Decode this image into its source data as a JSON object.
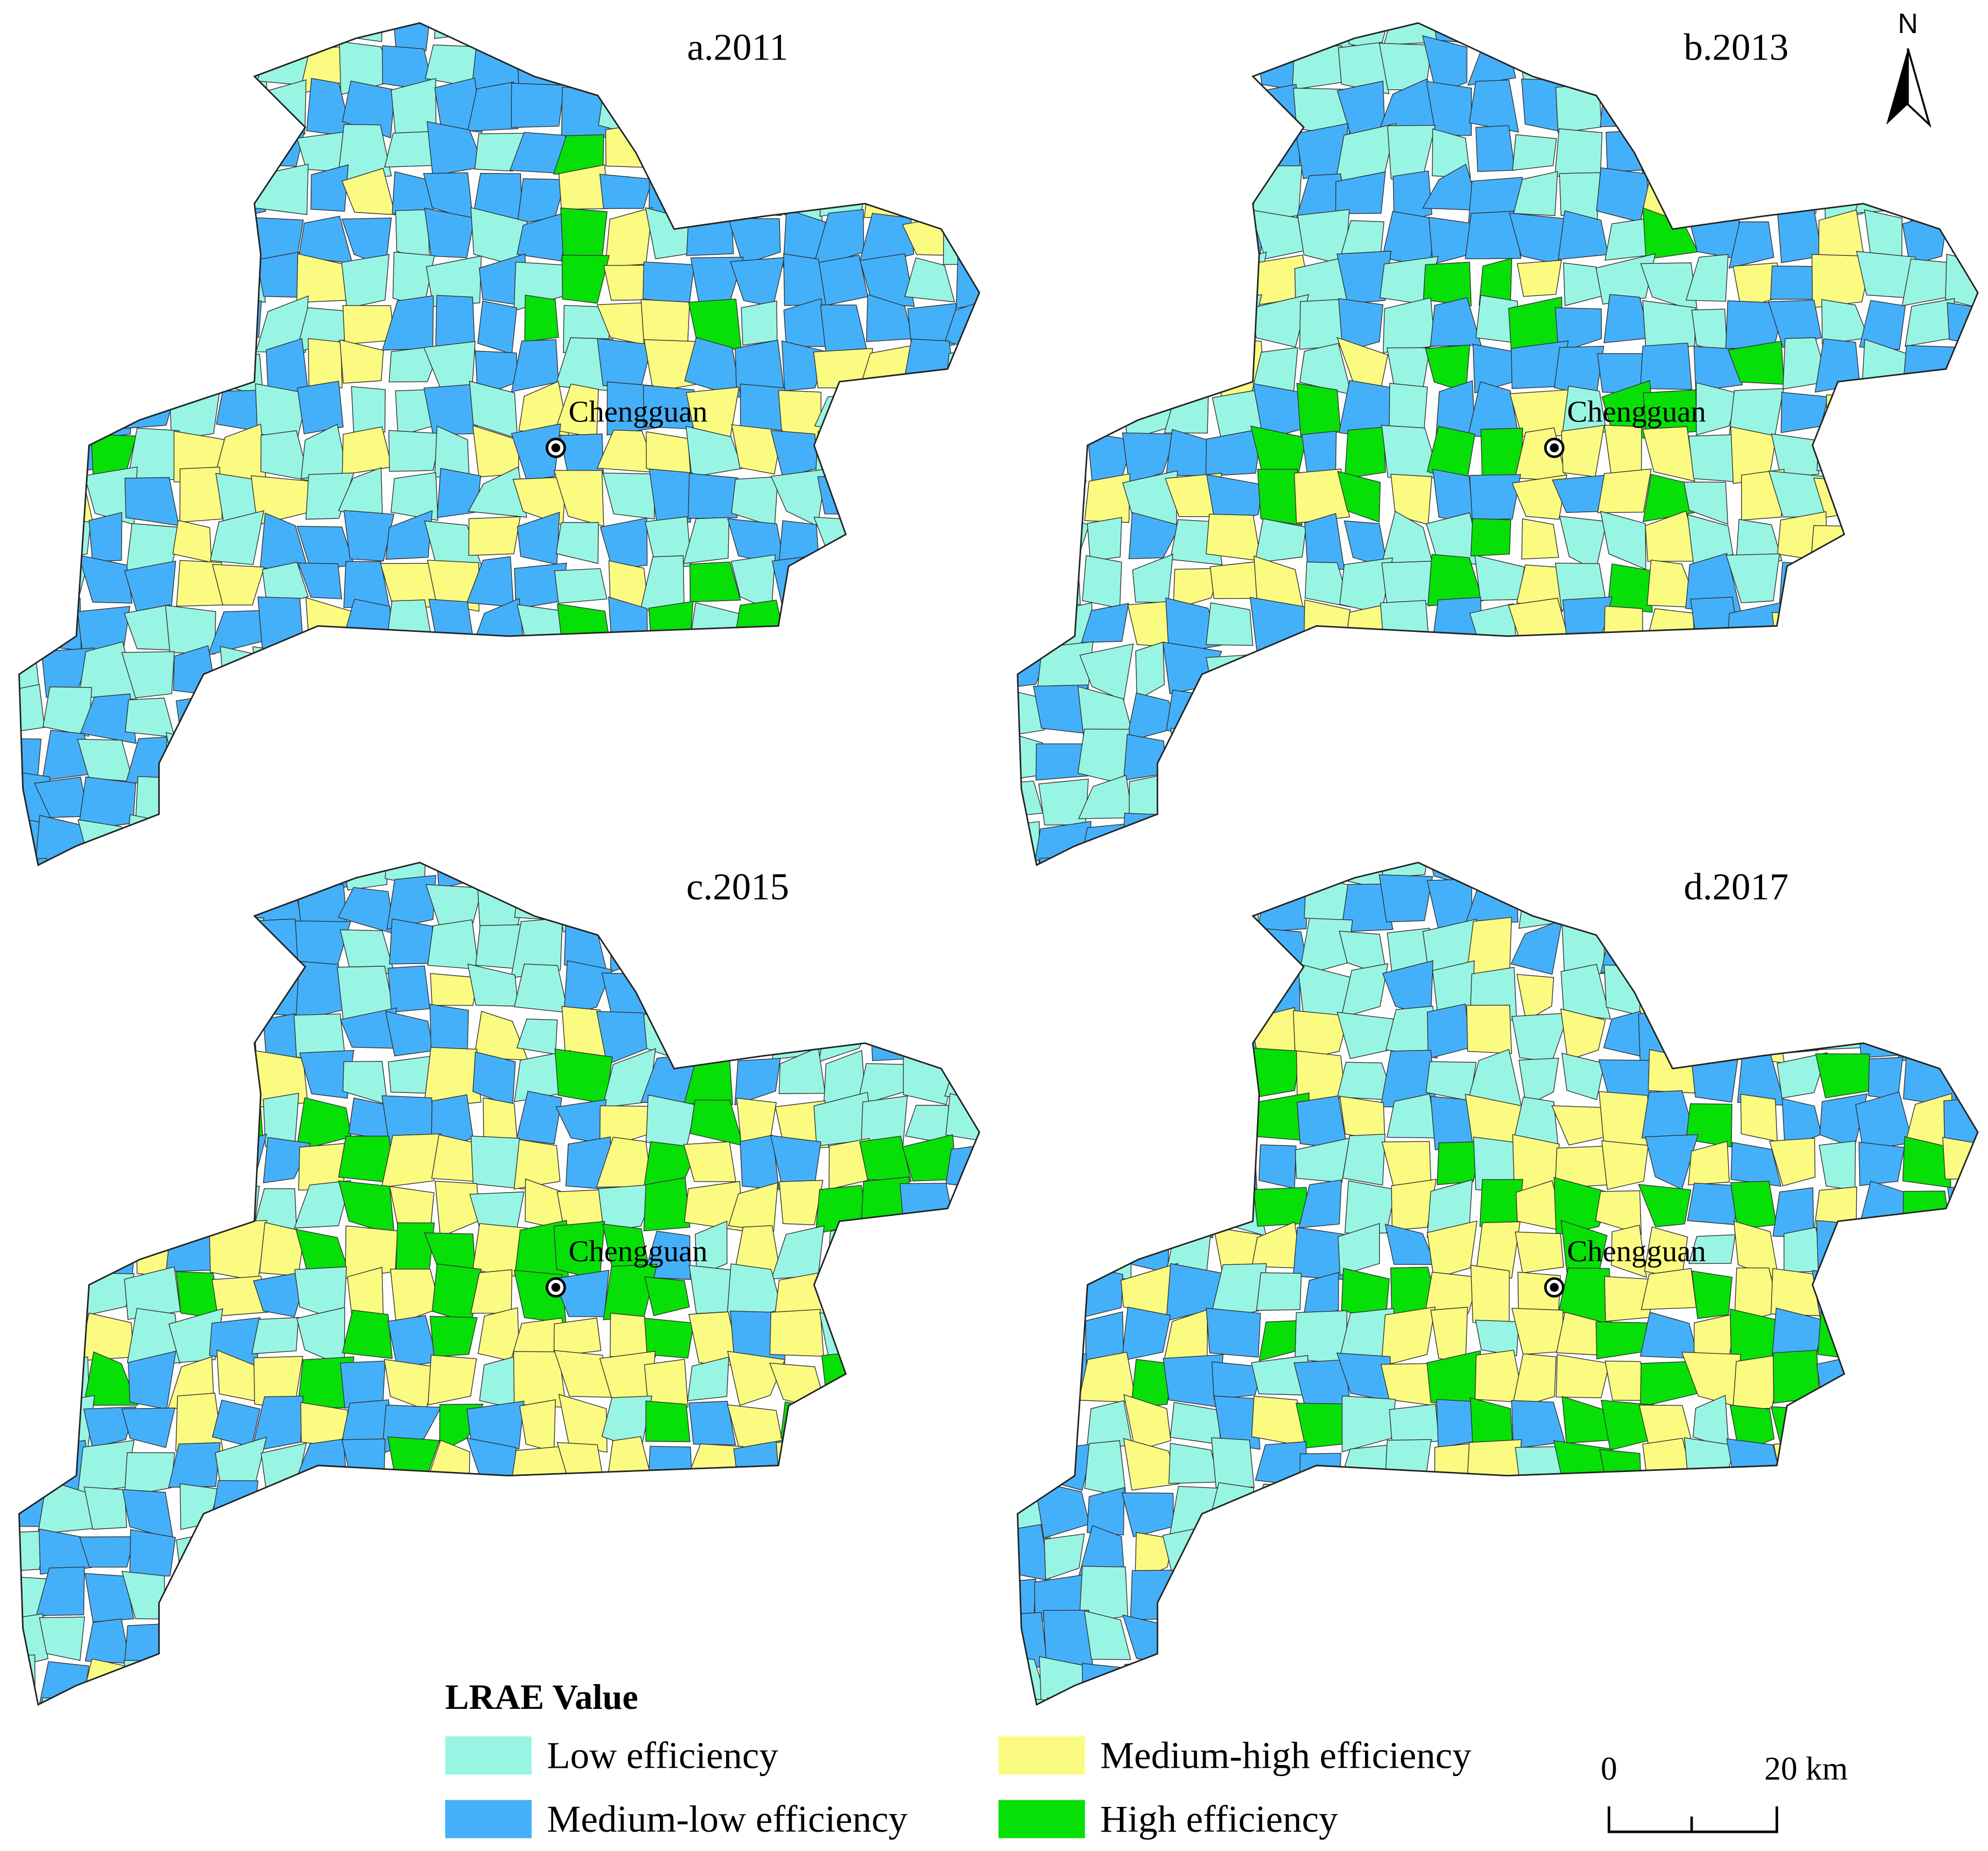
{
  "panels": [
    {
      "title": "a.2011",
      "city": "Chengguan"
    },
    {
      "title": "b.2013",
      "city": "Chengguan"
    },
    {
      "title": "c.2015",
      "city": "Chengguan"
    },
    {
      "title": "d.2017",
      "city": "Chengguan"
    }
  ],
  "north": "N",
  "legend": {
    "title": "LRAE Value",
    "items": [
      {
        "label": "Low efficiency",
        "color": "#99f5e3"
      },
      {
        "label": "Medium-low efficiency",
        "color": "#45b0fa"
      },
      {
        "label": "Medium-high efficiency",
        "color": "#fbfb81"
      },
      {
        "label": "High efficiency",
        "color": "#07e007"
      }
    ]
  },
  "scale_bar": {
    "labels": [
      "0",
      "20 km"
    ]
  }
}
